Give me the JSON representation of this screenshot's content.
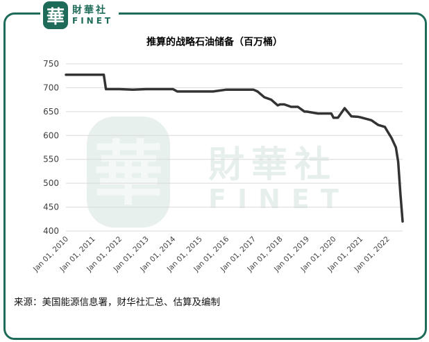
{
  "logo": {
    "glyph": "華",
    "name_cn": "財華社",
    "name_en": "FINET"
  },
  "watermark": {
    "glyph": "華",
    "name_cn": "財華社",
    "name_en": "FINET"
  },
  "source": "来源：美国能源信息署，财华社汇总、估算及编制",
  "colors": {
    "brand": "#1f6b5a",
    "line": "#333333",
    "grid": "#d9d9d9"
  },
  "chart_data": {
    "type": "line",
    "title": "推算的战略石油储备（百万桶）",
    "xlabel": "",
    "ylabel": "",
    "ylim": [
      400,
      750
    ],
    "yticks": [
      400,
      450,
      500,
      550,
      600,
      650,
      700,
      750
    ],
    "xlim": [
      "2010-01-01",
      "2022-08-01"
    ],
    "xticks": [
      "Jan 01, 2010",
      "Jan 01, 2011",
      "Jan 01, 2012",
      "Jan 01, 2013",
      "Jan 01, 2014",
      "Jan 01, 2015",
      "Jan 01, 2016",
      "Jan 01, 2017",
      "Jan 01, 2018",
      "Jan 01, 2019",
      "Jan 01, 2020",
      "Jan 01, 2021",
      "Jan 01, 2022"
    ],
    "grid": "horizontal",
    "series": [
      {
        "x": [
          "2010-01-01",
          "2011-06-01",
          "2011-07-01",
          "2012-01-01",
          "2012-07-01",
          "2013-01-01",
          "2014-01-01",
          "2014-03-01",
          "2015-01-01",
          "2015-07-01",
          "2016-01-01",
          "2017-01-01",
          "2017-03-01",
          "2017-06-01",
          "2017-09-01",
          "2017-12-01",
          "2018-01-01",
          "2018-03-01",
          "2018-06-01",
          "2018-09-01",
          "2018-12-01",
          "2019-01-01",
          "2019-06-01",
          "2019-12-01",
          "2020-01-01",
          "2020-03-01",
          "2020-06-01",
          "2020-09-01",
          "2020-12-01",
          "2021-01-01",
          "2021-06-01",
          "2021-09-01",
          "2021-12-01",
          "2022-01-01",
          "2022-03-01",
          "2022-05-01",
          "2022-06-01",
          "2022-07-01",
          "2022-08-01"
        ],
        "y": [
          727,
          727,
          697,
          697,
          696,
          697,
          697,
          692,
          692,
          692,
          696,
          696,
          692,
          680,
          675,
          663,
          665,
          665,
          660,
          660,
          650,
          650,
          646,
          646,
          637,
          637,
          657,
          640,
          639,
          638,
          632,
          622,
          618,
          610,
          595,
          575,
          545,
          480,
          420
        ]
      }
    ]
  }
}
